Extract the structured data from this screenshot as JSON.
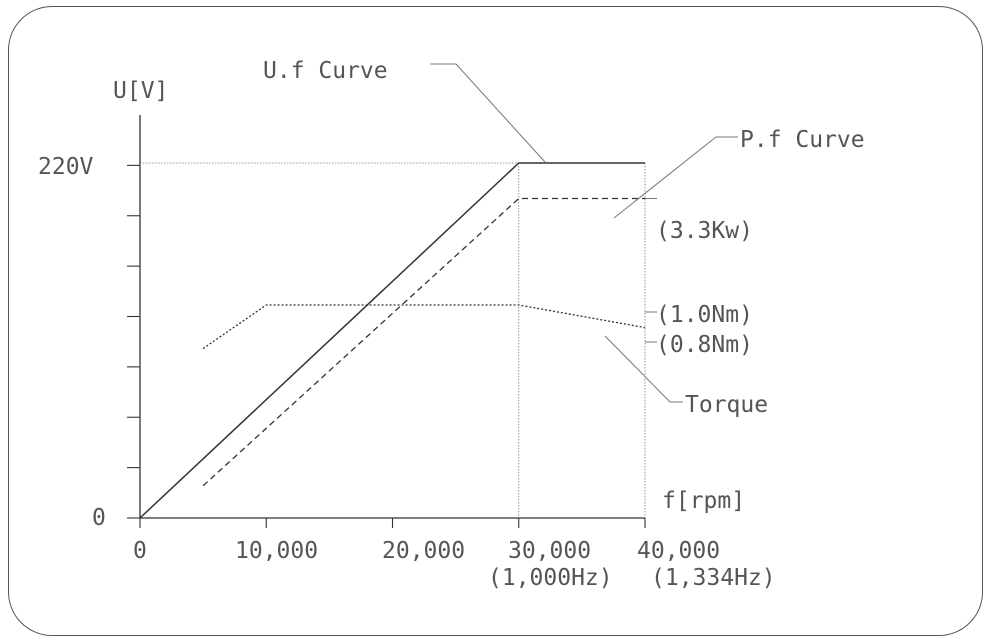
{
  "chart_data": {
    "type": "line",
    "ylabel": "U[V]",
    "xlabel": "f[rpm]",
    "x_ticks": [
      "0",
      "10,000",
      "20,000",
      "30,000",
      "40,000"
    ],
    "x_subticks": [
      "(1,000Hz)",
      "(1,334Hz)"
    ],
    "y_ticks": [
      "220V",
      "0"
    ],
    "xlim": [
      0,
      40000
    ],
    "ylim": [
      0,
      220
    ],
    "grid": false,
    "series": [
      {
        "name": "U.f Curve",
        "style": "solid",
        "x": [
          0,
          30000,
          40000
        ],
        "y": [
          0,
          220,
          220
        ]
      },
      {
        "name": "P.f Curve",
        "style": "dashed",
        "x": [
          5000,
          30000,
          40000
        ],
        "y": [
          20,
          198,
          198
        ],
        "end_label": "(3.3Kw)"
      },
      {
        "name": "Torque",
        "style": "dotted",
        "x": [
          5000,
          10000,
          30000,
          40000
        ],
        "y": [
          105,
          132,
          132,
          118
        ],
        "labels": [
          "(1.0Nm)",
          "(0.8Nm)"
        ]
      }
    ],
    "colors": {
      "lines": "#333333",
      "text": "#555555",
      "guides": "#777777"
    }
  }
}
